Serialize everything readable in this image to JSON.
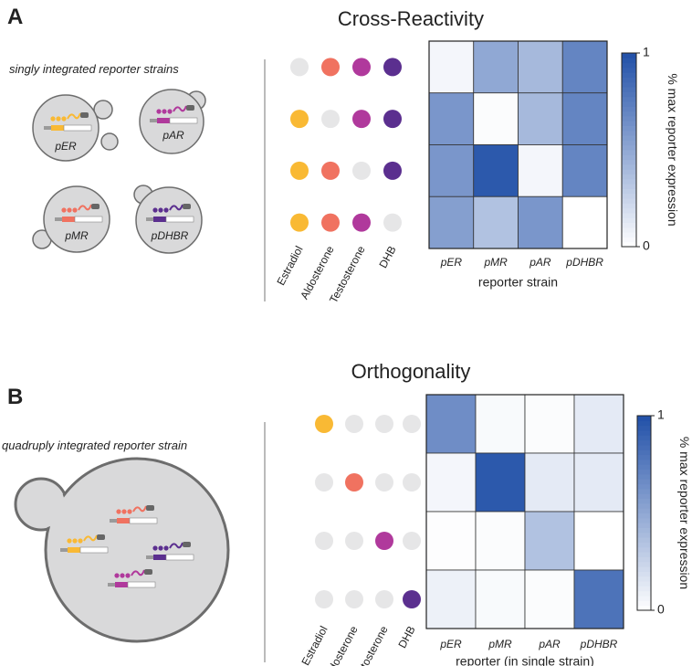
{
  "panels": [
    {
      "letter": "A",
      "caption": "singly integrated reporter strains",
      "strains": [
        "pER",
        "pAR",
        "pMR",
        "pDHBR"
      ]
    },
    {
      "letter": "B",
      "caption": "quadruply integrated reporter strain"
    }
  ],
  "chart_data": [
    {
      "type": "heatmap",
      "title": "Cross-Reactivity",
      "categories": [
        "pER",
        "pMR",
        "pAR",
        "pDHBR"
      ],
      "xlabel": "reporter strain",
      "ligands": [
        {
          "name": "Estradiol",
          "color": "#f9b934"
        },
        {
          "name": "Aldosterone",
          "color": "#f07260"
        },
        {
          "name": "Testosterone",
          "color": "#b0399c"
        },
        {
          "name": "DHB",
          "color": "#5b2f8f"
        }
      ],
      "absent_color": "#e6e6e7",
      "series": [
        {
          "present": [
            false,
            true,
            true,
            true
          ],
          "values": [
            0.05,
            0.5,
            0.4,
            0.7
          ]
        },
        {
          "present": [
            true,
            false,
            true,
            true
          ],
          "values": [
            0.6,
            0.02,
            0.4,
            0.7
          ]
        },
        {
          "present": [
            true,
            true,
            false,
            true
          ],
          "values": [
            0.6,
            0.95,
            0.05,
            0.7
          ]
        },
        {
          "present": [
            true,
            true,
            true,
            false
          ],
          "values": [
            0.55,
            0.35,
            0.6,
            0.0
          ]
        }
      ],
      "zlim": [
        0,
        1
      ],
      "zticks": [
        0,
        1
      ],
      "zlabel": "% max reporter expression",
      "colormap": [
        "#ffffff",
        "#2150a8"
      ]
    },
    {
      "type": "heatmap",
      "title": "Orthogonality",
      "categories": [
        "pER",
        "pMR",
        "pAR",
        "pDHBR"
      ],
      "xlabel": "reporter (in single strain)",
      "ligands": [
        {
          "name": "Estradiol",
          "color": "#f9b934"
        },
        {
          "name": "Aldosterone",
          "color": "#f07260"
        },
        {
          "name": "Testosterone",
          "color": "#b0399c"
        },
        {
          "name": "DHB",
          "color": "#5b2f8f"
        }
      ],
      "absent_color": "#e6e6e7",
      "series": [
        {
          "present": [
            true,
            false,
            false,
            false
          ],
          "values": [
            0.65,
            0.03,
            0.02,
            0.12
          ]
        },
        {
          "present": [
            false,
            true,
            false,
            false
          ],
          "values": [
            0.05,
            0.95,
            0.12,
            0.12
          ]
        },
        {
          "present": [
            false,
            false,
            true,
            false
          ],
          "values": [
            0.01,
            0.02,
            0.35,
            0.0
          ]
        },
        {
          "present": [
            false,
            false,
            false,
            true
          ],
          "values": [
            0.08,
            0.03,
            0.02,
            0.8
          ]
        }
      ],
      "zlim": [
        0,
        1
      ],
      "zticks": [
        0,
        1
      ],
      "zlabel": "% max reporter expression",
      "colormap": [
        "#ffffff",
        "#2150a8"
      ]
    }
  ]
}
